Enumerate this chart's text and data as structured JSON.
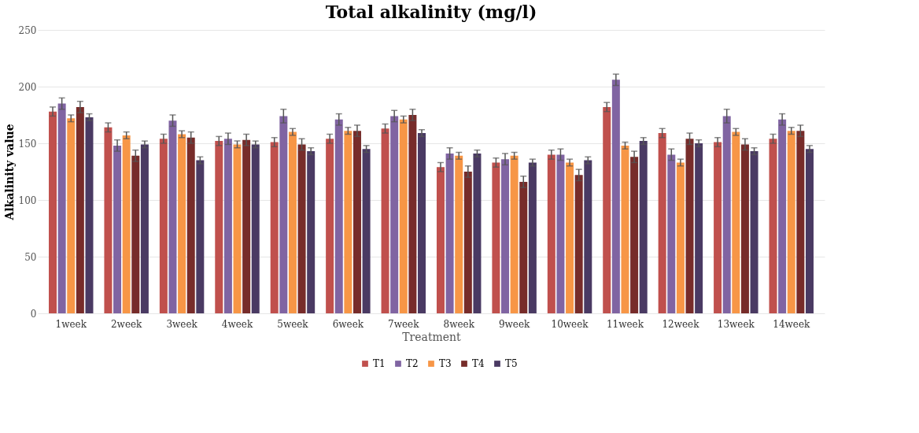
{
  "chart_data": {
    "type": "bar",
    "title": "Total alkalinity (mg/l)",
    "xlabel": "Treatment",
    "ylabel": "Alkalinity value",
    "categories": [
      "1week",
      "2week",
      "3week",
      "4week",
      "5week",
      "6week",
      "7week",
      "8week",
      "9week",
      "10week",
      "11week",
      "12week",
      "13week",
      "14week"
    ],
    "series": [
      {
        "name": "T1",
        "color": "#c0504d",
        "values": [
          178,
          164,
          154,
          152,
          151,
          154,
          163,
          129,
          133,
          140,
          182,
          159,
          151,
          154
        ],
        "errors": [
          4,
          4,
          4,
          4,
          4,
          4,
          4,
          4,
          4,
          4,
          4,
          4,
          4,
          4
        ]
      },
      {
        "name": "T2",
        "color": "#8064a2",
        "values": [
          185,
          148,
          170,
          154,
          174,
          171,
          174,
          141,
          136,
          140,
          206,
          140,
          174,
          171
        ],
        "errors": [
          5,
          5,
          5,
          5,
          6,
          5,
          5,
          5,
          5,
          5,
          5,
          5,
          6,
          5
        ]
      },
      {
        "name": "T3",
        "color": "#f79646",
        "values": [
          172,
          157,
          158,
          149,
          160,
          161,
          171,
          139,
          139,
          133,
          148,
          133,
          160,
          161
        ],
        "errors": [
          3,
          3,
          3,
          3,
          3,
          3,
          3,
          3,
          3,
          3,
          3,
          3,
          3,
          3
        ]
      },
      {
        "name": "T4",
        "color": "#772c2a",
        "values": [
          182,
          139,
          155,
          153,
          149,
          161,
          175,
          125,
          116,
          122,
          138,
          154,
          149,
          161
        ],
        "errors": [
          5,
          5,
          5,
          5,
          5,
          5,
          5,
          5,
          5,
          5,
          5,
          5,
          5,
          5
        ]
      },
      {
        "name": "T5",
        "color": "#4a3a63",
        "values": [
          173,
          149,
          135,
          149,
          143,
          145,
          159,
          141,
          133,
          135,
          152,
          150,
          143,
          145
        ],
        "errors": [
          3,
          3,
          3,
          3,
          3,
          3,
          3,
          3,
          3,
          3,
          3,
          3,
          3,
          3
        ]
      }
    ],
    "ylim": [
      0,
      250
    ],
    "yticks": [
      0,
      50,
      100,
      150,
      200,
      250
    ],
    "grid": "y",
    "legend": "bottom"
  }
}
